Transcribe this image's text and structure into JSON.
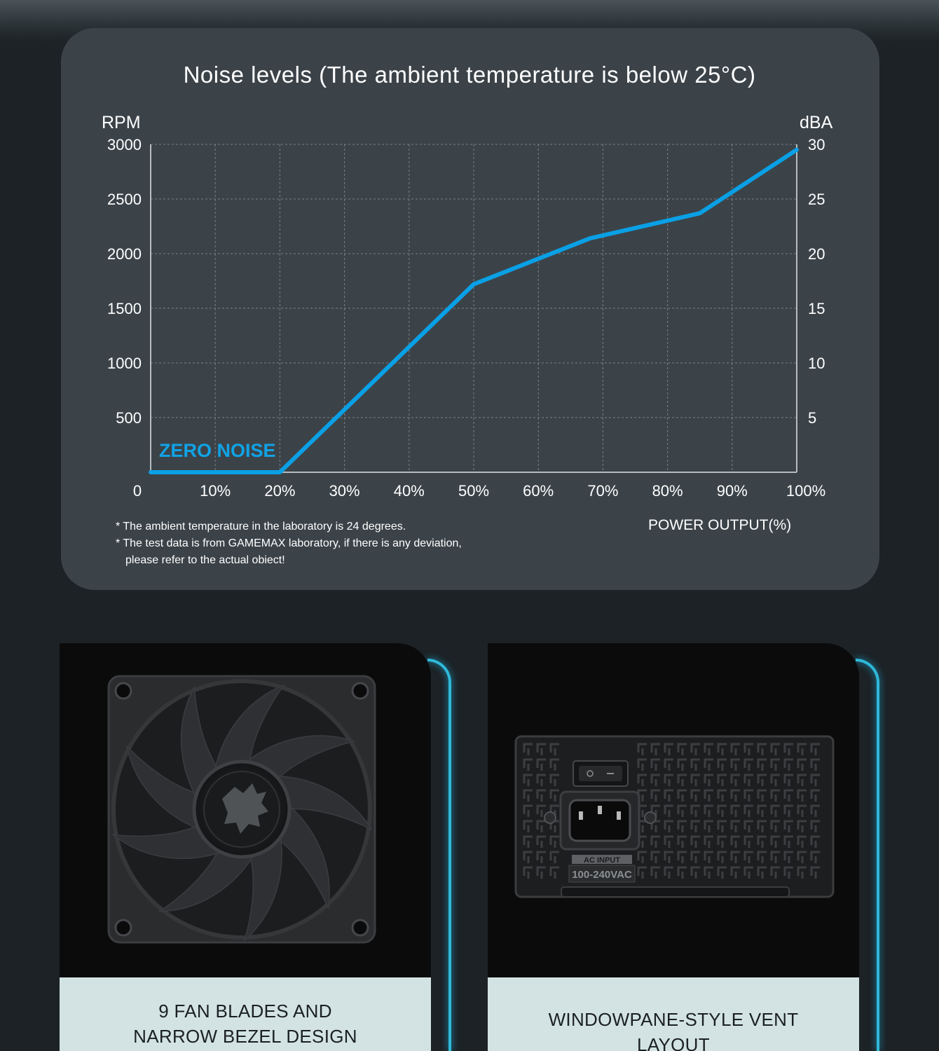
{
  "chart_data": {
    "type": "line",
    "title": "Noise levels (The ambient temperature is below 25°C)",
    "ylabel_left": "RPM",
    "ylabel_right": "dBA",
    "xlabel": "POWER OUTPUT(%)",
    "y_ticks_left": [
      "3000",
      "2500",
      "2000",
      "1500",
      "1000",
      "500"
    ],
    "y_ticks_right": [
      "30",
      "25",
      "20",
      "15",
      "10",
      "5"
    ],
    "x_ticks": [
      "0",
      "10%",
      "20%",
      "30%",
      "40%",
      "50%",
      "60%",
      "70%",
      "80%",
      "90%",
      "100%"
    ],
    "ylim_left": [
      0,
      3000
    ],
    "ylim_right": [
      0,
      30
    ],
    "xlim": [
      0,
      100
    ],
    "grid": true,
    "annotation": "ZERO NOISE",
    "line_color": "#0aa0e6",
    "series": [
      {
        "x": [
          0,
          20,
          50,
          68,
          85,
          100
        ],
        "y": [
          0,
          0,
          1720,
          2140,
          2370,
          2950
        ]
      }
    ],
    "notes": [
      "* The ambient temperature in the laboratory is 24 degrees.",
      "* The test data is from GAMEMAX laboratory, if there is any deviation,",
      "please refer to the actual obiect!"
    ]
  },
  "features": [
    {
      "image": "fan-image",
      "caption_lines": [
        "9 FAN BLADES AND",
        "NARROW BEZEL DESIGN"
      ]
    },
    {
      "image": "psu-rear-image",
      "caption_lines": [
        "WINDOWPANE-STYLE VENT",
        "LAYOUT"
      ],
      "psu_labels": [
        "AC INPUT",
        "100-240VAC"
      ]
    }
  ],
  "colors": {
    "panel": "#3b4349",
    "accent_glow": "#2fb8d8",
    "caption_bg": "#d3e3e4"
  }
}
